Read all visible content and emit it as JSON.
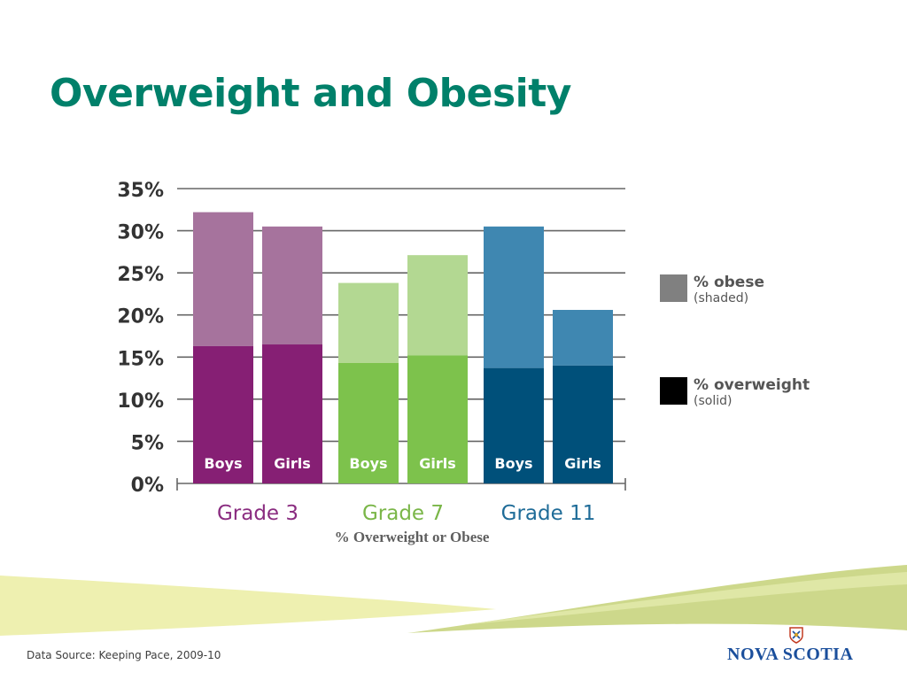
{
  "slide": {
    "title": "Overweight and Obesity",
    "caption": "% Overweight or Obese",
    "source": "Data Source: Keeping Pace, 2009-10",
    "logo_text": "NOVA SCOTIA",
    "title_color": "#00806a"
  },
  "chart_data": {
    "type": "bar",
    "stacked": true,
    "y_ticks": [
      "0%",
      "5%",
      "10%",
      "15%",
      "20%",
      "25%",
      "30%",
      "35%"
    ],
    "ylim": [
      0,
      35
    ],
    "grid": true,
    "legend_position": "right",
    "legend": [
      {
        "label": "% obese",
        "sub": "(shaded)",
        "color": "#808080"
      },
      {
        "label": "% overweight",
        "sub": "(solid)",
        "color": "#000000"
      }
    ],
    "groups": [
      {
        "name": "Grade 3",
        "color": "#8a2c80",
        "solid_color": "#861f74",
        "shaded_color": "#a6739d",
        "bars": [
          {
            "label": "Boys",
            "overweight": 16.3,
            "obese": 15.9
          },
          {
            "label": "Girls",
            "overweight": 16.5,
            "obese": 14.0
          }
        ]
      },
      {
        "name": "Grade 7",
        "color": "#7ab648",
        "solid_color": "#7dc24c",
        "shaded_color": "#b3d892",
        "bars": [
          {
            "label": "Boys",
            "overweight": 14.3,
            "obese": 9.5
          },
          {
            "label": "Girls",
            "overweight": 15.2,
            "obese": 11.9
          }
        ]
      },
      {
        "name": "Grade 11",
        "color": "#1f6c98",
        "solid_color": "#00507a",
        "shaded_color": "#3f87b1",
        "bars": [
          {
            "label": "Boys",
            "overweight": 13.7,
            "obese": 16.8
          },
          {
            "label": "Girls",
            "overweight": 14.0,
            "obese": 6.6
          }
        ]
      }
    ]
  }
}
